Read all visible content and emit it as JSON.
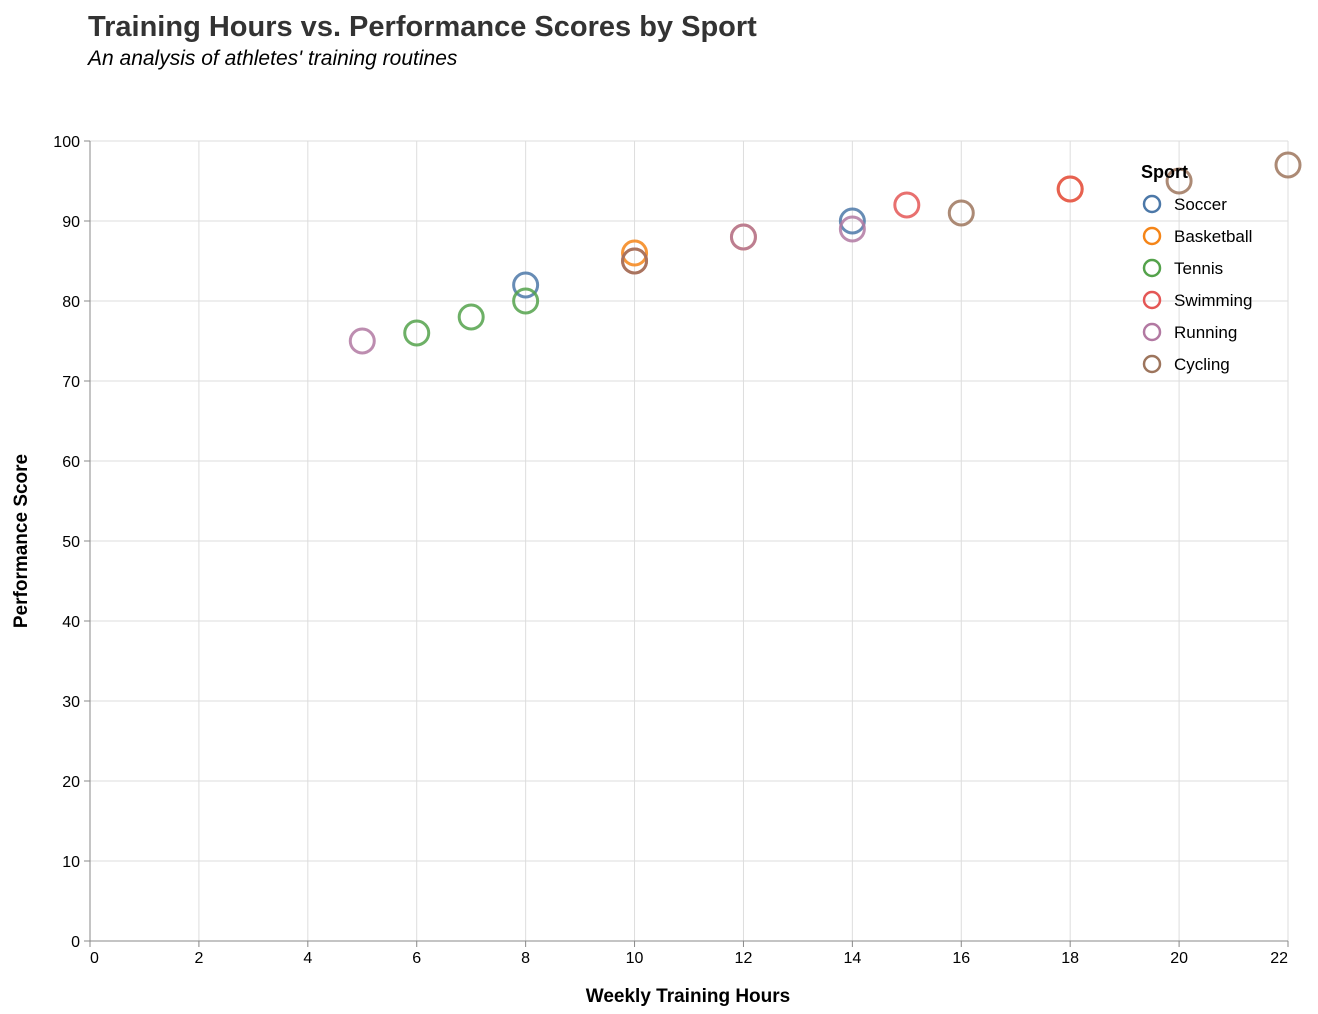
{
  "chart_data": {
    "type": "scatter",
    "title": "Training Hours vs. Performance Scores by Sport",
    "subtitle": "An analysis of athletes' training routines",
    "xlabel": "Weekly Training Hours",
    "ylabel": "Performance Score",
    "xlim": [
      0,
      22
    ],
    "ylim": [
      0,
      100
    ],
    "x_ticks": [
      0,
      2,
      4,
      6,
      8,
      10,
      12,
      14,
      16,
      18,
      20,
      22
    ],
    "y_ticks": [
      0,
      10,
      20,
      30,
      40,
      50,
      60,
      70,
      80,
      90,
      100
    ],
    "grid": true,
    "legend": {
      "title": "Sport",
      "placement": "top-right"
    },
    "series": [
      {
        "name": "Soccer",
        "color": "#4c78a8",
        "points": [
          [
            8,
            82
          ],
          [
            14,
            90
          ]
        ]
      },
      {
        "name": "Basketball",
        "color": "#f58518",
        "points": [
          [
            10,
            86
          ],
          [
            12,
            88
          ],
          [
            18,
            94
          ]
        ]
      },
      {
        "name": "Tennis",
        "color": "#54a24b",
        "points": [
          [
            6,
            76
          ],
          [
            7,
            78
          ],
          [
            8,
            80
          ]
        ]
      },
      {
        "name": "Swimming",
        "color": "#e45756",
        "points": [
          [
            10,
            85
          ],
          [
            15,
            92
          ],
          [
            18,
            94
          ]
        ]
      },
      {
        "name": "Running",
        "color": "#b279a2",
        "points": [
          [
            5,
            75
          ],
          [
            12,
            88
          ],
          [
            14,
            89
          ]
        ]
      },
      {
        "name": "Cycling",
        "color": "#9d755d",
        "points": [
          [
            10,
            85
          ],
          [
            16,
            91
          ],
          [
            20,
            95
          ],
          [
            22,
            97
          ]
        ]
      }
    ]
  }
}
